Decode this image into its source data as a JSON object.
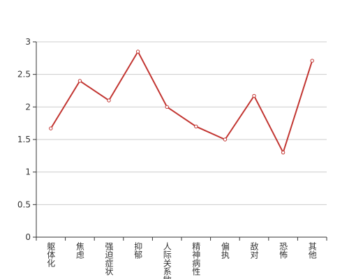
{
  "chart_data": {
    "type": "line",
    "categories": [
      "躯体化",
      "焦虑",
      "强迫症状",
      "抑郁",
      "人际关系敏感",
      "精神病性",
      "偏执",
      "敌对",
      "恐怖",
      "其他"
    ],
    "values": [
      1.67,
      2.4,
      2.1,
      2.85,
      2.0,
      1.7,
      1.5,
      2.17,
      1.3,
      2.71
    ],
    "color": "#c23531",
    "ylim": [
      0,
      3
    ],
    "yticks": [
      0,
      0.5,
      1,
      1.5,
      2,
      2.5,
      3
    ],
    "grid": true
  }
}
